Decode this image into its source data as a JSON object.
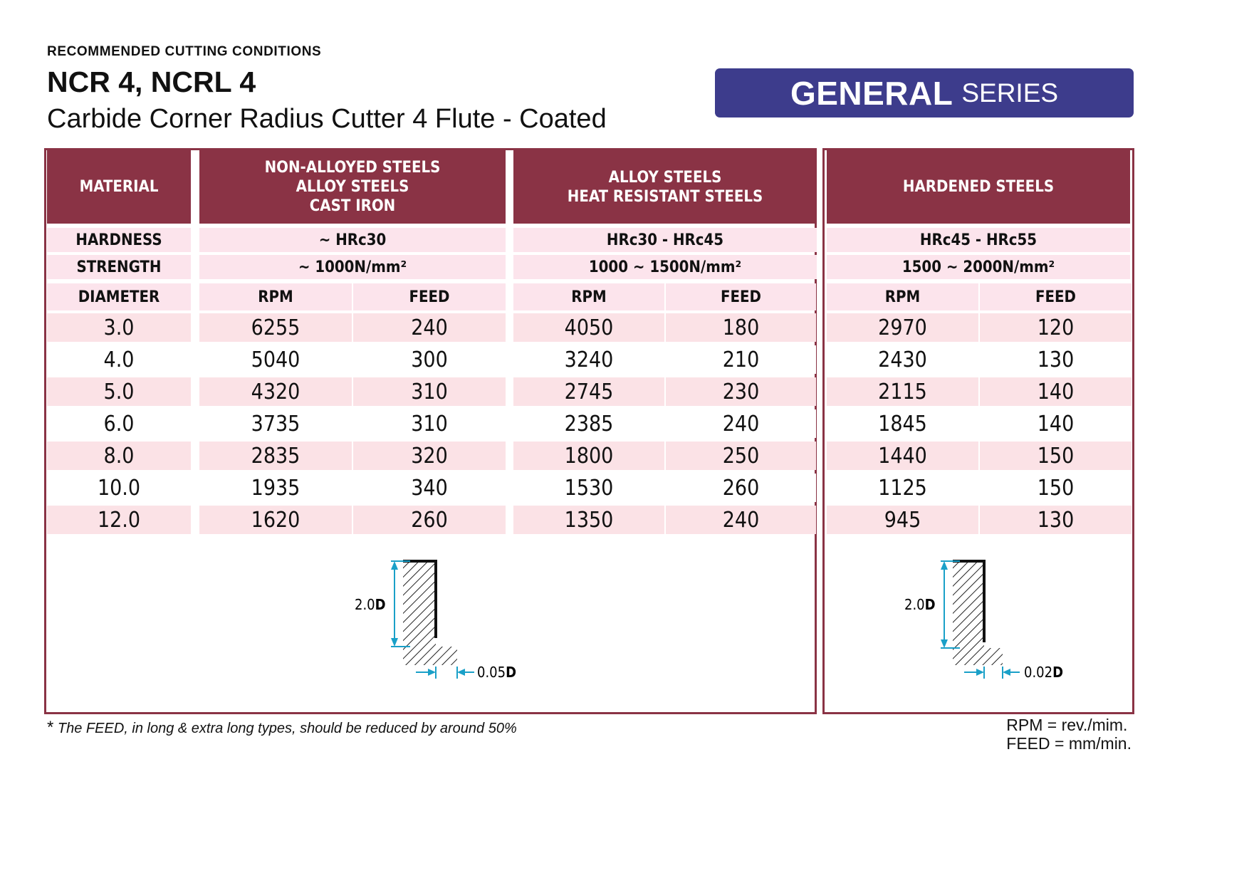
{
  "header": {
    "kicker": "RECOMMENDED CUTTING CONDITIONS",
    "title": "NCR 4, NCRL 4",
    "subtitle": "Carbide Corner Radius Cutter 4 Flute - Coated",
    "series_big": "GENERAL",
    "series_small": "SERIES"
  },
  "table": {
    "material_label": "MATERIAL",
    "hardness_label": "HARDNESS",
    "strength_label": "STRENGTH",
    "diameter_label": "DIAMETER",
    "rpm_label": "RPM",
    "feed_label": "FEED",
    "groups": [
      {
        "lines": [
          "NON-ALLOYED STEELS",
          "ALLOY STEELS",
          "CAST IRON"
        ],
        "hardness": "~ HRc30",
        "strength": "~ 1000N/mm²"
      },
      {
        "lines": [
          "ALLOY STEELS",
          "HEAT RESISTANT STEELS"
        ],
        "hardness": "HRc30 - HRc45",
        "strength": "1000 ~ 1500N/mm²"
      },
      {
        "lines": [
          "HARDENED STEELS"
        ],
        "hardness": "HRc45 - HRc55",
        "strength": "1500 ~ 2000N/mm²"
      }
    ],
    "rows": [
      {
        "d": "3.0",
        "v": [
          "6255",
          "240",
          "4050",
          "180",
          "2970",
          "120"
        ]
      },
      {
        "d": "4.0",
        "v": [
          "5040",
          "300",
          "3240",
          "210",
          "2430",
          "130"
        ]
      },
      {
        "d": "5.0",
        "v": [
          "4320",
          "310",
          "2745",
          "230",
          "2115",
          "140"
        ]
      },
      {
        "d": "6.0",
        "v": [
          "3735",
          "310",
          "2385",
          "240",
          "1845",
          "140"
        ]
      },
      {
        "d": "8.0",
        "v": [
          "2835",
          "320",
          "1800",
          "250",
          "1440",
          "150"
        ]
      },
      {
        "d": "10.0",
        "v": [
          "1935",
          "340",
          "1530",
          "260",
          "1125",
          "150"
        ]
      },
      {
        "d": "12.0",
        "v": [
          "1620",
          "260",
          "1350",
          "240",
          "945",
          "130"
        ]
      }
    ]
  },
  "diagrams": [
    {
      "depth_num": "2.0",
      "depth_unit": "D",
      "radial_num": "0.05",
      "radial_unit": "D"
    },
    {
      "depth_num": "2.0",
      "depth_unit": "D",
      "radial_num": "0.02",
      "radial_unit": "D"
    }
  ],
  "footer": {
    "note_star": "*",
    "note": "The FEED, in long & extra long types, should be reduced by around 50%",
    "legend_rpm": "RPM = rev./mim.",
    "legend_feed": "FEED = mm/min."
  }
}
